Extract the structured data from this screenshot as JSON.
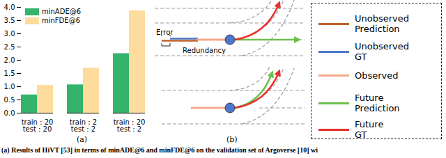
{
  "chart_data": {
    "type": "bar",
    "categories": [
      "train : 20\ntest : 20",
      "train : 2\ntest : 2",
      "train : 20\ntest : 2"
    ],
    "series": [
      {
        "name": "minADE@6",
        "color": "#33b36b",
        "values": [
          0.69,
          1.07,
          2.25
        ]
      },
      {
        "name": "minFDE@6",
        "color": "#fddc9d",
        "values": [
          1.05,
          1.7,
          3.87
        ]
      }
    ],
    "ylim": [
      0,
      4
    ],
    "yticks": [
      {
        "value": 0,
        "label": "0.0"
      },
      {
        "value": 0.5,
        "label": "0.5"
      },
      {
        "value": 1,
        "label": "1.0"
      },
      {
        "value": 1.5,
        "label": "1.5"
      },
      {
        "value": 2,
        "label": "2.0"
      },
      {
        "value": 2.5,
        "label": "2.5"
      },
      {
        "value": 3,
        "label": "3.0"
      },
      {
        "value": 3.5,
        "label": "3.5"
      },
      {
        "value": 4,
        "label": "4.0"
      }
    ],
    "grid": false,
    "legend": "upper left"
  },
  "panels": {
    "a": "(a)",
    "b": "(b)"
  },
  "diagram": {
    "annotations": [
      "Error",
      "Redundancy"
    ]
  },
  "legend_box": [
    {
      "name": "Unobserved\nPrediction",
      "color": "#c0622b"
    },
    {
      "name": "Unobserved\nGT",
      "color": "#4a77c9"
    },
    {
      "name": "Observed",
      "color": "#f5a98a"
    },
    {
      "name": "Future\nPrediction",
      "color": "#6cbf4e"
    },
    {
      "name": "Future\nGT",
      "color": "#e8312a"
    }
  ],
  "caption": "(a) Results of HiVT [53] in terms of minADE@6 and minFDE@6 on the validation set of Argoverse [10] wi"
}
